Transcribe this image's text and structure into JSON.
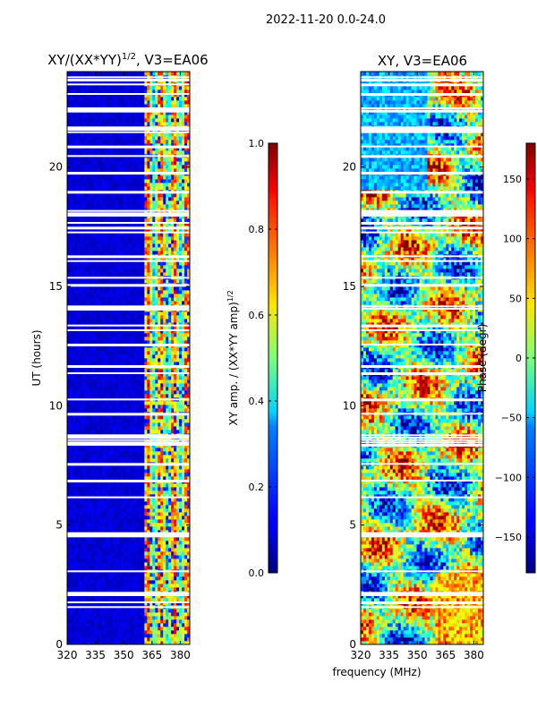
{
  "figure_title": "2022-11-20 0.0-24.0",
  "chart_data": [
    {
      "type": "heatmap",
      "title": "XY/(XX*YY)^1/2, V3=EA06",
      "title_main": "XY/(XX*YY)",
      "title_exp": "1/2",
      "title_suffix": ", V3=EA06",
      "xlabel": "",
      "ylabel": "UT (hours)",
      "xlim": [
        320,
        385
      ],
      "ylim": [
        0,
        24
      ],
      "xticks": [
        320,
        335,
        350,
        365,
        380
      ],
      "yticks": [
        0,
        5,
        10,
        15,
        20
      ],
      "colormap": "jet",
      "colorbar": {
        "label": "XY amp. / (XX*YY amp)^1/2",
        "label_main": "XY amp. / (XX*YY amp)",
        "label_exp": "1/2",
        "range": [
          0.0,
          1.0
        ],
        "ticks": [
          "0.0",
          "0.2",
          "0.4",
          "0.6",
          "0.8",
          "1.0"
        ]
      },
      "description": "Mostly low values (~0.05) from 320-361 MHz; speckled mid-high values (0.3-0.8) in vertical striations from ~361-380 MHz; white (flagged) horizontal gaps scattered through the day, large gap near 8.3-8.8 h"
    },
    {
      "type": "heatmap",
      "title": "XY, V3=EA06",
      "xlabel": "frequency (MHz)",
      "ylabel": "",
      "xlim": [
        320,
        385
      ],
      "ylim": [
        0,
        24
      ],
      "xticks": [
        320,
        335,
        350,
        365,
        380
      ],
      "yticks": [
        0,
        5,
        10,
        15,
        20
      ],
      "colormap": "jet",
      "colorbar": {
        "label": "Phase (degr)",
        "range": [
          -180,
          180
        ],
        "ticks": [
          "−150",
          "−100",
          "−50",
          "0",
          "50",
          "100",
          "150"
        ]
      },
      "description": "Phase varies widely across full -180 to 180 range with noisy banded structure; same flagged time gaps as the amplitude panel"
    }
  ]
}
